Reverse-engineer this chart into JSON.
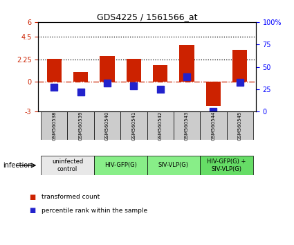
{
  "title": "GDS4225 / 1561566_at",
  "samples": [
    "GSM560538",
    "GSM560539",
    "GSM560540",
    "GSM560541",
    "GSM560542",
    "GSM560543",
    "GSM560544",
    "GSM560545"
  ],
  "transformed_count": [
    2.3,
    1.0,
    2.6,
    2.3,
    1.7,
    3.7,
    -2.4,
    3.2
  ],
  "percentile_rank_mapped": [
    -0.55,
    -1.0,
    -0.1,
    -0.4,
    -0.75,
    0.5,
    -3.0,
    -0.05
  ],
  "ylim": [
    -3,
    6
  ],
  "yticks_left": [
    -3,
    0,
    2.25,
    4.5,
    6
  ],
  "ytick_left_labels": [
    "-3",
    "0",
    "2.25",
    "4.5",
    "6"
  ],
  "yticks_right_mapped": [
    -3,
    -0.75,
    1.5,
    3.75,
    6
  ],
  "ytick_right_labels": [
    "0",
    "25",
    "50",
    "75",
    "100%"
  ],
  "hline_y0": 0,
  "hline_y225": 2.25,
  "hline_y45": 4.5,
  "bar_color": "#cc2200",
  "blue_color": "#2222cc",
  "groups": [
    {
      "label": "uninfected\ncontrol",
      "cols": [
        0,
        1
      ],
      "color": "#e8e8e8"
    },
    {
      "label": "HIV-GFP(G)",
      "cols": [
        2,
        3
      ],
      "color": "#88ee88"
    },
    {
      "label": "SIV-VLP(G)",
      "cols": [
        4,
        5
      ],
      "color": "#88ee88"
    },
    {
      "label": "HIV-GFP(G) +\nSIV-VLP(G)",
      "cols": [
        6,
        7
      ],
      "color": "#66dd66"
    }
  ],
  "bg_color_sample_row": "#cccccc",
  "legend_red_label": "transformed count",
  "legend_blue_label": "percentile rank within the sample",
  "bar_width": 0.55,
  "blue_size": 60
}
